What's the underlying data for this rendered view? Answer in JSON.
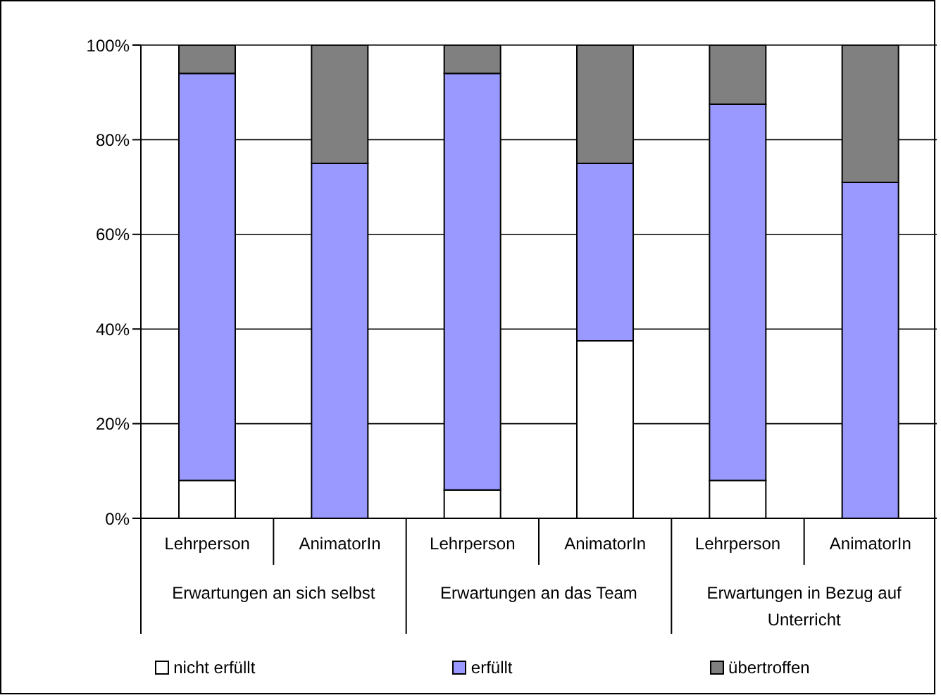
{
  "chart_data": {
    "type": "bar",
    "stacked": true,
    "categories": [
      "Lehrperson",
      "AnimatorIn",
      "Lehrperson",
      "AnimatorIn",
      "Lehrperson",
      "AnimatorIn"
    ],
    "annotations": [
      "Erwartungen an sich selbst",
      "Erwartungen an das Team",
      "Erwartungen in Bezug auf Unterricht"
    ],
    "series": [
      {
        "name": "nicht erfüllt",
        "color": "#ffffff",
        "values": [
          8,
          0,
          6,
          37.5,
          8,
          0
        ]
      },
      {
        "name": "erfüllt",
        "color": "#9999ff",
        "values": [
          86,
          75,
          88,
          37.5,
          79.5,
          71
        ]
      },
      {
        "name": "übertroffen",
        "color": "#808080",
        "values": [
          6,
          25,
          6,
          25,
          12.5,
          29
        ]
      }
    ],
    "ylim": [
      0,
      100
    ],
    "yticks": [
      {
        "value": 0,
        "label": "0%"
      },
      {
        "value": 20,
        "label": "20%"
      },
      {
        "value": 40,
        "label": "40%"
      },
      {
        "value": 60,
        "label": "60%"
      },
      {
        "value": 80,
        "label": "80%"
      },
      {
        "value": 100,
        "label": "100%"
      }
    ],
    "grid": "y",
    "legend": "bottom"
  }
}
